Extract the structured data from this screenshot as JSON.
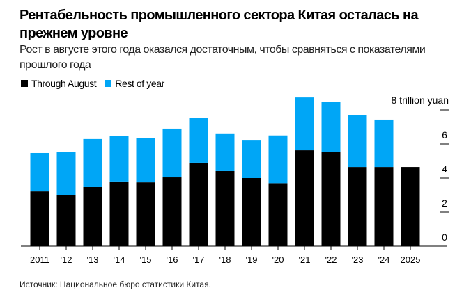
{
  "title": "Рентабельность промышленного сектора Китая осталась на прежнем уровне",
  "subtitle": "Рост в августе этого года оказался достаточным, чтобы сравняться с показателями прошлого года",
  "source": "Источник: Национальное бюро статистики Китая.",
  "chart_data": {
    "type": "bar",
    "stacked": true,
    "categories": [
      "2011",
      "'12",
      "'13",
      "'14",
      "'15",
      "'16",
      "'17",
      "'18",
      "'19",
      "'20",
      "'21",
      "'22",
      "'23",
      "'24",
      "2025"
    ],
    "series": [
      {
        "name": "Through August",
        "color": "#000000",
        "values": [
          3.22,
          3.02,
          3.47,
          3.8,
          3.75,
          4.04,
          4.9,
          4.41,
          4.0,
          3.7,
          5.63,
          5.55,
          4.65,
          4.65,
          4.65
        ]
      },
      {
        "name": "Rest of year",
        "color": "#00a6f6",
        "values": [
          2.25,
          2.53,
          2.82,
          2.65,
          2.59,
          2.86,
          2.61,
          2.21,
          2.2,
          2.8,
          3.1,
          2.9,
          3.05,
          2.78,
          null
        ]
      }
    ],
    "y_unit_label": "8 trillion yuan",
    "yticks": [
      "0",
      "2",
      "4",
      "6"
    ],
    "ylim": [
      0,
      8
    ],
    "axis_side": "right",
    "legend_placement": "top-left",
    "grid": false
  }
}
